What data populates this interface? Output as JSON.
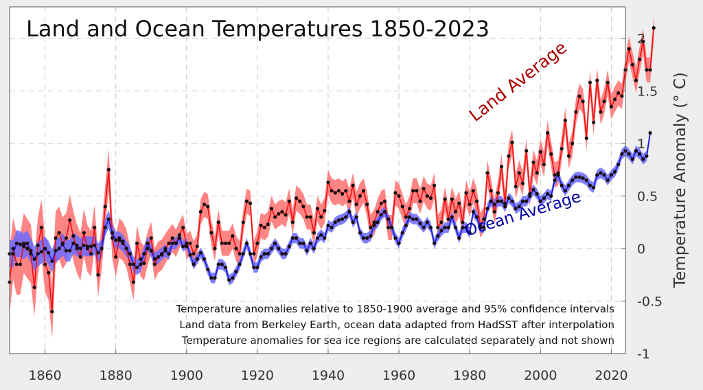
{
  "chart_data": {
    "type": "line",
    "title": "Land and Ocean Temperatures 1850-2023",
    "ylabel": "Temperature Anomaly (° C)",
    "xlabel": "",
    "xlim": [
      1850,
      2024
    ],
    "ylim": [
      -1,
      2.3
    ],
    "x_ticks": [
      1860,
      1880,
      1900,
      1920,
      1940,
      1960,
      1980,
      2000,
      2020
    ],
    "y_ticks": [
      -1,
      -0.5,
      0,
      0.5,
      1,
      1.5,
      2
    ],
    "grid": true,
    "annotations": {
      "land_label": "Land Average",
      "ocean_label": "Ocean Average",
      "note_lines": [
        "Temperature anomalies relative to 1850-1900 average and 95% confidence intervals",
        "Land data from Berkeley Earth, ocean data adapted from HadSST after interpolation",
        "Temperature anomalies for sea ice regions are calculated separately and not shown"
      ]
    },
    "colors": {
      "land_line": "#ee1111",
      "land_band": "#ff7070",
      "ocean_line": "#1a1acc",
      "ocean_band": "#6a6aff",
      "marker": "#1a0d0d",
      "land_label": "#aa0000",
      "ocean_label": "#0000aa",
      "background": "#eeeeee",
      "plot_area": "#ffffff"
    },
    "series": [
      {
        "name": "Land Average",
        "x_start": 1850,
        "values": [
          -0.32,
          0.0,
          -0.15,
          -0.15,
          0.05,
          0.0,
          -0.05,
          -0.37,
          0.03,
          0.2,
          -0.15,
          -0.23,
          -0.6,
          0.1,
          0.15,
          0.05,
          0.1,
          0.27,
          0.12,
          0.0,
          -0.08,
          0.15,
          0.0,
          -0.05,
          0.2,
          -0.25,
          0.0,
          0.4,
          0.75,
          0.1,
          -0.08,
          0.1,
          0.07,
          0.0,
          -0.15,
          -0.32,
          0.05,
          -0.1,
          -0.14,
          0.0,
          0.1,
          -0.15,
          -0.08,
          -0.06,
          0.0,
          0.05,
          0.1,
          0.05,
          0.13,
          0.2,
          0.02,
          0.05,
          -0.05,
          0.02,
          0.35,
          0.42,
          0.4,
          0.15,
          0.0,
          0.25,
          0.05,
          0.05,
          0.05,
          0.12,
          0.0,
          -0.05,
          0.25,
          0.45,
          0.43,
          -0.05,
          0.05,
          0.22,
          0.2,
          0.23,
          0.38,
          0.3,
          0.33,
          0.35,
          0.32,
          0.45,
          0.25,
          0.48,
          0.45,
          0.4,
          0.3,
          0.3,
          0.15,
          0.38,
          0.3,
          0.36,
          0.63,
          0.55,
          0.53,
          0.55,
          0.52,
          0.55,
          0.45,
          0.6,
          0.42,
          0.5,
          0.55,
          0.42,
          0.2,
          0.25,
          0.35,
          0.43,
          0.45,
          0.2,
          0.2,
          0.53,
          0.5,
          0.4,
          0.3,
          0.38,
          0.55,
          0.55,
          0.45,
          0.57,
          0.5,
          0.48,
          0.6,
          0.2,
          0.25,
          0.47,
          0.28,
          0.47,
          0.35,
          0.43,
          0.25,
          0.53,
          0.42,
          0.55,
          0.45,
          0.22,
          0.28,
          0.72,
          0.55,
          0.35,
          0.53,
          0.78,
          0.43,
          0.88,
          1.01,
          0.59,
          0.72,
          0.62,
          0.93,
          0.52,
          0.82,
          0.72,
          0.92,
          0.8,
          1.1,
          0.9,
          0.7,
          0.72,
          0.95,
          1.22,
          0.88,
          1.0,
          1.3,
          1.45,
          1.4,
          1.05,
          1.58,
          1.2,
          1.6,
          1.3,
          1.4,
          1.58,
          1.35,
          1.42,
          1.48,
          1.45,
          1.7,
          1.9,
          1.75,
          1.6,
          1.8,
          1.97,
          1.7,
          1.7,
          2.1
        ],
        "ci_width": 0.12
      },
      {
        "name": "Ocean Average",
        "x_start": 1850,
        "values": [
          -0.05,
          -0.05,
          0.05,
          0.04,
          0.02,
          0.05,
          -0.02,
          -0.1,
          -0.05,
          -0.03,
          0.0,
          -0.04,
          -0.12,
          -0.02,
          0.0,
          0.04,
          -0.02,
          -0.02,
          0.05,
          0.03,
          0.0,
          0.03,
          0.02,
          0.02,
          0.03,
          -0.04,
          0.0,
          0.2,
          0.28,
          0.15,
          0.08,
          0.08,
          0.05,
          0.0,
          -0.05,
          -0.15,
          -0.18,
          -0.15,
          -0.05,
          0.05,
          -0.02,
          -0.1,
          -0.08,
          -0.05,
          -0.02,
          -0.05,
          0.05,
          0.05,
          0.1,
          0.02,
          0.05,
          -0.06,
          -0.15,
          -0.1,
          -0.04,
          -0.1,
          -0.2,
          -0.28,
          -0.28,
          -0.15,
          -0.15,
          -0.18,
          -0.3,
          -0.28,
          -0.22,
          -0.15,
          -0.05,
          0.05,
          -0.05,
          -0.18,
          -0.18,
          -0.08,
          -0.05,
          -0.05,
          0.0,
          0.05,
          0.0,
          -0.05,
          -0.05,
          0.02,
          0.1,
          0.1,
          0.05,
          0.05,
          -0.02,
          0.05,
          0.0,
          0.1,
          0.13,
          0.1,
          0.22,
          0.2,
          0.25,
          0.27,
          0.28,
          0.3,
          0.35,
          0.25,
          0.3,
          0.15,
          0.1,
          0.1,
          0.12,
          0.22,
          0.25,
          0.32,
          0.35,
          0.28,
          0.2,
          0.1,
          0.05,
          0.15,
          0.22,
          0.3,
          0.28,
          0.28,
          0.24,
          0.2,
          0.25,
          0.2,
          0.05,
          0.12,
          0.17,
          0.2,
          0.2,
          0.3,
          0.2,
          0.1,
          0.2,
          0.2,
          0.15,
          0.35,
          0.3,
          0.2,
          0.2,
          0.38,
          0.45,
          0.42,
          0.45,
          0.45,
          0.4,
          0.48,
          0.45,
          0.38,
          0.4,
          0.45,
          0.45,
          0.5,
          0.56,
          0.52,
          0.45,
          0.48,
          0.52,
          0.5,
          0.65,
          0.7,
          0.6,
          0.55,
          0.6,
          0.65,
          0.68,
          0.68,
          0.67,
          0.65,
          0.6,
          0.58,
          0.7,
          0.72,
          0.7,
          0.65,
          0.7,
          0.73,
          0.8,
          0.9,
          0.93,
          0.9,
          0.85,
          0.93,
          0.9,
          0.85,
          0.88,
          1.1
        ],
        "ci_width": 0.05
      }
    ]
  }
}
